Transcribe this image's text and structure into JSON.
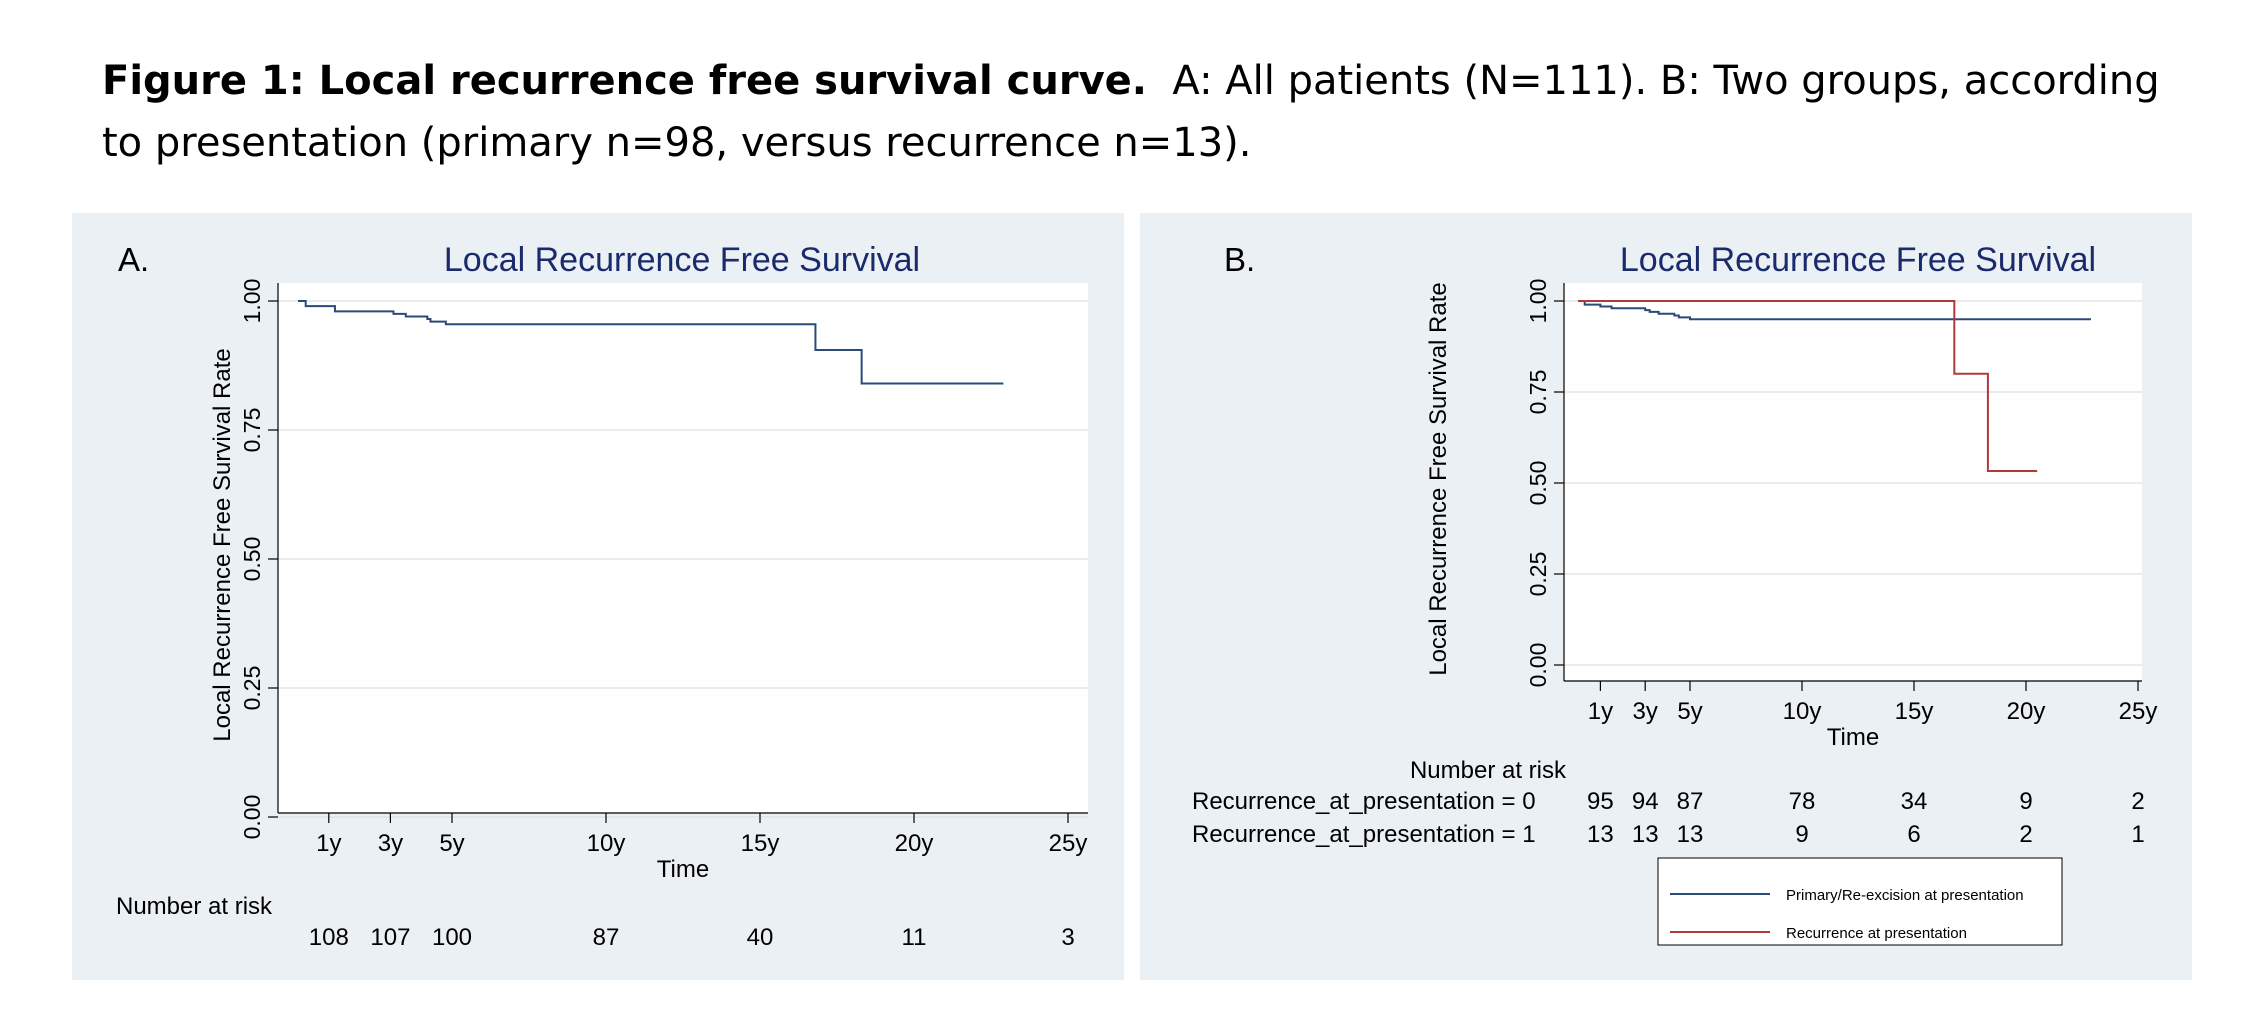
{
  "caption": {
    "bold": "Figure 1: Local recurrence free survival curve.",
    "rest": "A: All patients (N=111). B: Two groups, according to presentation (primary n=98, versus recurrence n=13)."
  },
  "colors": {
    "panel_bg": "#eaf0f3",
    "title": "#1a2a6c",
    "series_primary": "#2a4a7a",
    "series_recurrence": "#b03a3a",
    "grid": "#dde6ea"
  },
  "chart_data": [
    {
      "panel_label": "A.",
      "type": "line",
      "title": "Local Recurrence Free Survival",
      "xlabel": "Time",
      "ylabel": "Local Recurrence Free Survival Rate",
      "xlim": [
        0,
        25
      ],
      "ylim": [
        0,
        1
      ],
      "grid": true,
      "step": true,
      "x_ticks": [
        {
          "value": 1,
          "label": "1y"
        },
        {
          "value": 3,
          "label": "3y"
        },
        {
          "value": 5,
          "label": "5y"
        },
        {
          "value": 10,
          "label": "10y"
        },
        {
          "value": 15,
          "label": "15y"
        },
        {
          "value": 20,
          "label": "20y"
        },
        {
          "value": 25,
          "label": "25y"
        }
      ],
      "y_ticks": [
        {
          "value": 0,
          "label": "0.00"
        },
        {
          "value": 0.25,
          "label": "0.25"
        },
        {
          "value": 0.5,
          "label": "0.50"
        },
        {
          "value": 0.75,
          "label": "0.75"
        },
        {
          "value": 1,
          "label": "1.00"
        }
      ],
      "series": [
        {
          "x": [
            0,
            0.2,
            0.25,
            1.2,
            3.0,
            3.1,
            3.5,
            4.2,
            4.3,
            4.8,
            6.0,
            7.5,
            9.0,
            10.5,
            12.0,
            13.5,
            15.0,
            16.8,
            16.8,
            18.3,
            18.3,
            22.9
          ],
          "y": [
            1.0,
            1.0,
            0.99,
            0.98,
            0.98,
            0.975,
            0.97,
            0.965,
            0.96,
            0.955,
            0.955,
            0.955,
            0.955,
            0.955,
            0.955,
            0.955,
            0.955,
            0.955,
            0.905,
            0.905,
            0.84,
            0.84
          ]
        }
      ],
      "risk_table": {
        "header": "Number at risk",
        "rows": [
          {
            "label": "",
            "values": [
              "108",
              "107",
              "100",
              "87",
              "40",
              "11",
              "3"
            ]
          }
        ]
      }
    },
    {
      "panel_label": "B.",
      "type": "line",
      "title": "Local Recurrence Free Survival",
      "xlabel": "Time",
      "ylabel": "Local Recurrence Free Survival Rate",
      "xlim": [
        0,
        25
      ],
      "ylim": [
        0,
        1
      ],
      "grid": true,
      "step": true,
      "x_ticks": [
        {
          "value": 1,
          "label": "1y"
        },
        {
          "value": 3,
          "label": "3y"
        },
        {
          "value": 5,
          "label": "5y"
        },
        {
          "value": 10,
          "label": "10y"
        },
        {
          "value": 15,
          "label": "15y"
        },
        {
          "value": 20,
          "label": "20y"
        },
        {
          "value": 25,
          "label": "25y"
        }
      ],
      "y_ticks": [
        {
          "value": 0,
          "label": "0.00"
        },
        {
          "value": 0.25,
          "label": "0.25"
        },
        {
          "value": 0.5,
          "label": "0.50"
        },
        {
          "value": 0.75,
          "label": "0.75"
        },
        {
          "value": 1,
          "label": "1.00"
        }
      ],
      "series": [
        {
          "name": "Primary/Re-excision at presentation",
          "color": "#2a4a7a",
          "x": [
            0,
            0.2,
            0.3,
            1.0,
            1.5,
            3.0,
            3.2,
            3.6,
            4.3,
            4.5,
            5.0,
            8.0,
            12.0,
            16.0,
            19.0,
            22.9
          ],
          "y": [
            1.0,
            1.0,
            0.99,
            0.985,
            0.98,
            0.975,
            0.97,
            0.965,
            0.96,
            0.955,
            0.95,
            0.95,
            0.95,
            0.95,
            0.95,
            0.95
          ]
        },
        {
          "name": "Recurrence at presentation",
          "color": "#b03a3a",
          "x": [
            0,
            16.8,
            16.8,
            18.3,
            18.3,
            20.5
          ],
          "y": [
            1.0,
            1.0,
            0.8,
            0.8,
            0.533,
            0.533
          ]
        }
      ],
      "risk_table": {
        "header": "Number at risk",
        "rows": [
          {
            "label": "Recurrence_at_presentation = 0",
            "values": [
              "95",
              "94",
              "87",
              "78",
              "34",
              "9",
              "2"
            ]
          },
          {
            "label": "Recurrence_at_presentation = 1",
            "values": [
              "13",
              "13",
              "13",
              "9",
              "6",
              "2",
              "1"
            ]
          }
        ]
      },
      "legend_position": "bottom"
    }
  ]
}
